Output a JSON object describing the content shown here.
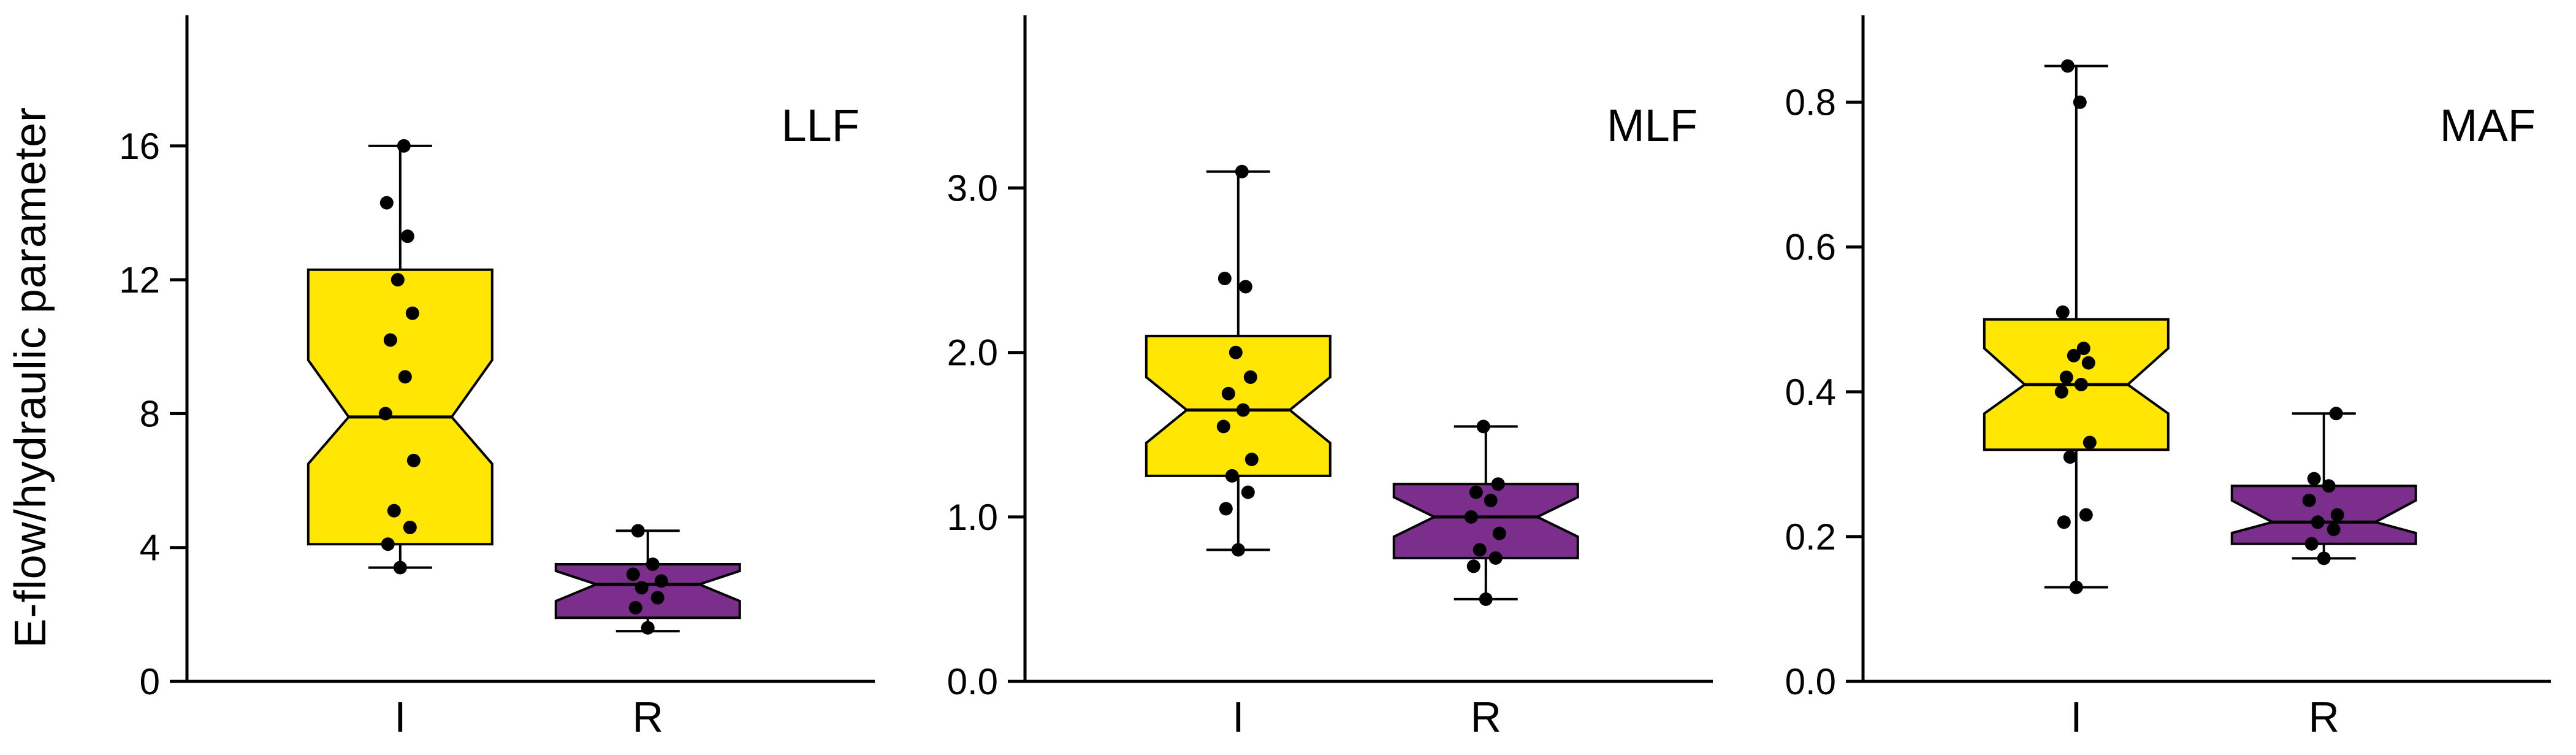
{
  "figure": {
    "y_axis_label": "E-flow/hydraulic parameter",
    "background": "#ffffff"
  },
  "chart_data": {
    "type": "boxplot",
    "subtype": "notched-boxplot-with-jittered-points",
    "layout": "three horizontal panels sharing one rotated y-axis label, legend absent, grid off",
    "categories": [
      "I",
      "R"
    ],
    "colors": {
      "I_fill": "#FFE603",
      "R_fill": "#7B2E8C",
      "stroke": "#000000",
      "points": "#000000"
    },
    "panels": [
      {
        "title": "LLF",
        "ylim": [
          0,
          19.9
        ],
        "yticks": [
          0,
          4,
          8,
          12,
          16
        ],
        "ytick_labels": [
          "0",
          "4",
          "8",
          "12",
          "16"
        ],
        "groups": [
          {
            "name": "I",
            "fill": "#FFE603",
            "whisker_low": 3.4,
            "q1": 4.1,
            "notch_low": 6.5,
            "median": 7.9,
            "notch_high": 9.6,
            "q3": 12.3,
            "whisker_high": 16.0,
            "points": [
              3.4,
              4.1,
              4.6,
              5.1,
              6.6,
              8.0,
              9.1,
              10.2,
              11.0,
              12.0,
              13.3,
              14.3,
              16.0
            ]
          },
          {
            "name": "R",
            "fill": "#7B2E8C",
            "whisker_low": 1.5,
            "q1": 1.9,
            "notch_low": 2.4,
            "median": 2.9,
            "notch_high": 3.3,
            "q3": 3.5,
            "whisker_high": 4.5,
            "points": [
              1.6,
              2.2,
              2.5,
              2.8,
              3.0,
              3.2,
              3.5,
              4.5
            ]
          }
        ]
      },
      {
        "title": "MLF",
        "ylim": [
          0,
          4.05
        ],
        "yticks": [
          0,
          1,
          2,
          3
        ],
        "ytick_labels": [
          "0.0",
          "1.0",
          "2.0",
          "3.0"
        ],
        "groups": [
          {
            "name": "I",
            "fill": "#FFE603",
            "whisker_low": 0.8,
            "q1": 1.25,
            "notch_low": 1.45,
            "median": 1.65,
            "notch_high": 1.85,
            "q3": 2.1,
            "whisker_high": 3.1,
            "points": [
              0.8,
              1.05,
              1.15,
              1.25,
              1.35,
              1.55,
              1.65,
              1.75,
              1.85,
              2.0,
              2.4,
              2.45,
              3.1
            ]
          },
          {
            "name": "R",
            "fill": "#7B2E8C",
            "whisker_low": 0.5,
            "q1": 0.75,
            "notch_low": 0.88,
            "median": 1.0,
            "notch_high": 1.12,
            "q3": 1.2,
            "whisker_high": 1.55,
            "points": [
              0.5,
              0.7,
              0.75,
              0.8,
              0.9,
              1.0,
              1.1,
              1.15,
              1.2,
              1.55
            ]
          }
        ]
      },
      {
        "title": "MAF",
        "ylim": [
          0,
          0.92
        ],
        "yticks": [
          0,
          0.2,
          0.4,
          0.6,
          0.8
        ],
        "ytick_labels": [
          "0.0",
          "0.2",
          "0.4",
          "0.6",
          "0.8"
        ],
        "groups": [
          {
            "name": "I",
            "fill": "#FFE603",
            "whisker_low": 0.13,
            "q1": 0.32,
            "notch_low": 0.37,
            "median": 0.41,
            "notch_high": 0.46,
            "q3": 0.5,
            "whisker_high": 0.85,
            "points": [
              0.13,
              0.22,
              0.23,
              0.31,
              0.33,
              0.4,
              0.41,
              0.42,
              0.44,
              0.45,
              0.46,
              0.51,
              0.8,
              0.85
            ]
          },
          {
            "name": "R",
            "fill": "#7B2E8C",
            "whisker_low": 0.17,
            "q1": 0.19,
            "notch_low": 0.205,
            "median": 0.22,
            "notch_high": 0.25,
            "q3": 0.27,
            "whisker_high": 0.37,
            "points": [
              0.17,
              0.19,
              0.21,
              0.22,
              0.23,
              0.25,
              0.27,
              0.28,
              0.37
            ]
          }
        ]
      }
    ]
  }
}
